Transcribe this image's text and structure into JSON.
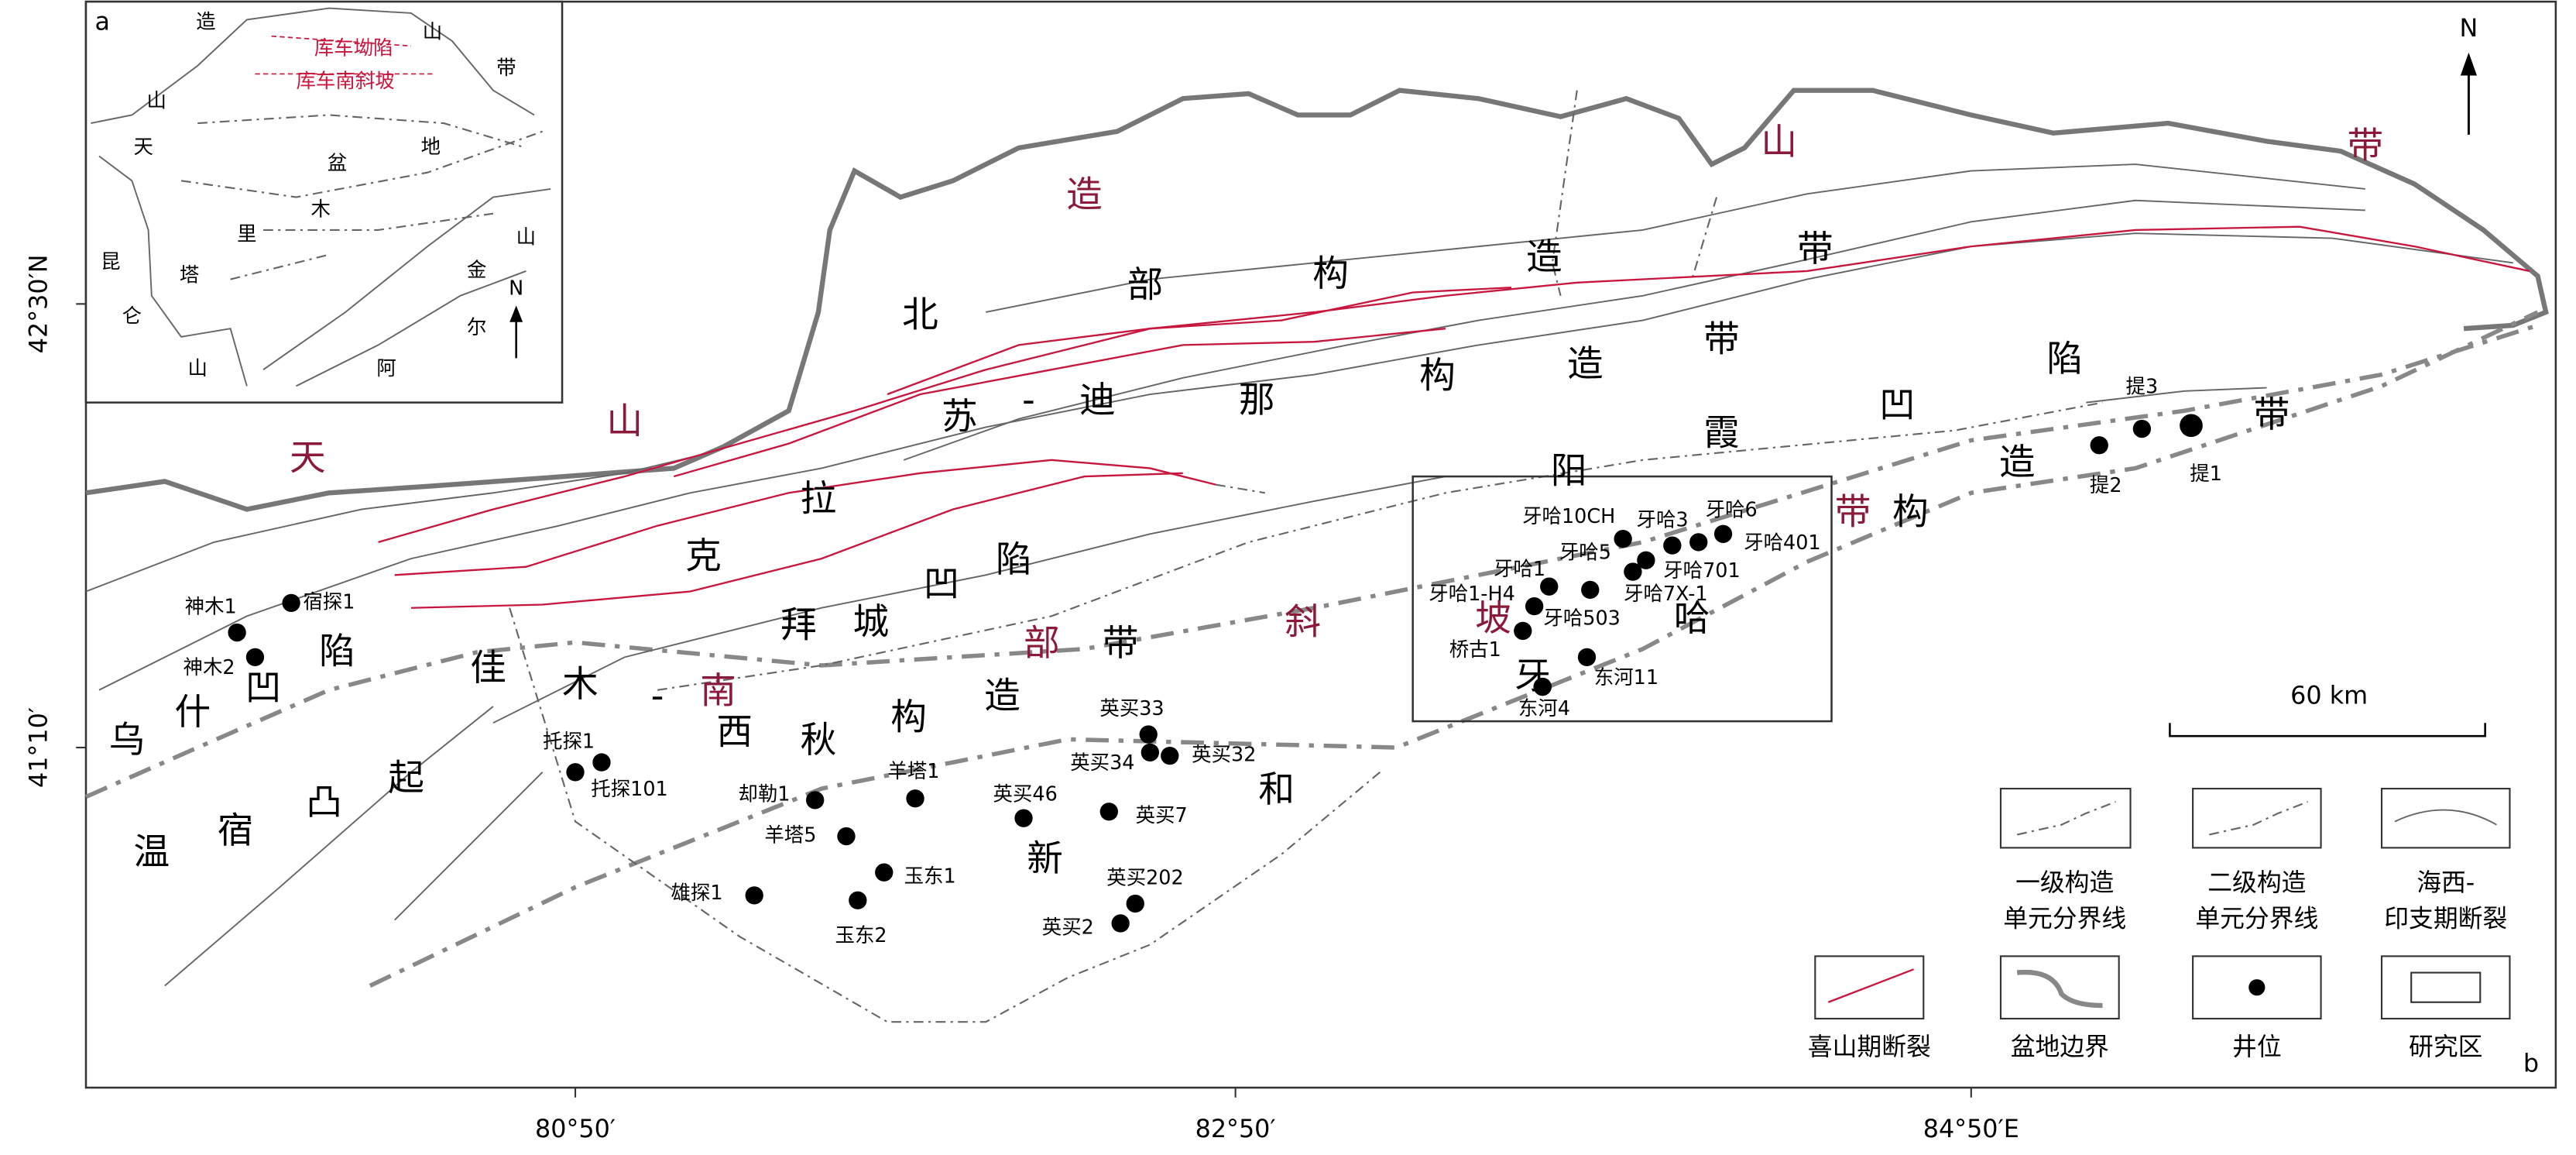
{
  "inset": {
    "panel_label": "a",
    "labels": [
      "造",
      "山",
      "带",
      "山",
      "天",
      "盆",
      "地",
      "木",
      "里",
      "昆",
      "塔",
      "山",
      "金",
      "仑",
      "尔",
      "山",
      "阿"
    ],
    "highlight_labels": [
      "库车坳陷",
      "库车南斜坡"
    ],
    "north": "N"
  },
  "map": {
    "panel_label": "b",
    "north": "N",
    "scale": "60 km",
    "region_labels": [
      "造",
      "山",
      "带",
      "北",
      "部",
      "构",
      "造",
      "带",
      "苏",
      "-",
      "迪",
      "那",
      "构",
      "造",
      "带",
      "陷",
      "凹",
      "霞",
      "阳",
      "山",
      "天",
      "拉",
      "克",
      "陷",
      "凹",
      "城",
      "拜",
      "部",
      "带",
      "斜",
      "坡",
      "哈",
      "牙",
      "带",
      "构",
      "造",
      "带",
      "陷",
      "凹",
      "什",
      "乌",
      "佳",
      "木",
      "-",
      "南",
      "西",
      "秋",
      "构",
      "造",
      "和",
      "新",
      "起",
      "凸",
      "宿",
      "温"
    ],
    "wells": [
      "神木1",
      "神木2",
      "宿探1",
      "托探1",
      "托探101",
      "却勒1",
      "羊塔1",
      "羊塔5",
      "玉东1",
      "玉东2",
      "雄探1",
      "英买33",
      "英买32",
      "英买34",
      "英买46",
      "英买7",
      "英买202",
      "英买2",
      "牙哈10CH",
      "牙哈3",
      "牙哈6",
      "牙哈401",
      "牙哈5",
      "牙哈701",
      "牙哈1",
      "牙哈7X-1",
      "牙哈1-H4",
      "牙哈503",
      "桥古1",
      "东河11",
      "东河4",
      "提3",
      "提2",
      "提1"
    ]
  },
  "axes": {
    "x_labels": [
      "80°50′",
      "82°50′",
      "84°50′E"
    ],
    "y_labels": [
      "42°30′N",
      "41°10′"
    ]
  },
  "legend": [
    {
      "lines": [
        "一级构造",
        "单元分界线"
      ]
    },
    {
      "lines": [
        "二级构造",
        "单元分界线"
      ]
    },
    {
      "lines": [
        "海西-",
        "印支期断裂"
      ]
    },
    {
      "lines": [
        "喜山期断裂"
      ]
    },
    {
      "lines": [
        "盆地边界"
      ]
    },
    {
      "lines": [
        "井位"
      ]
    },
    {
      "lines": [
        "研究区"
      ]
    }
  ]
}
